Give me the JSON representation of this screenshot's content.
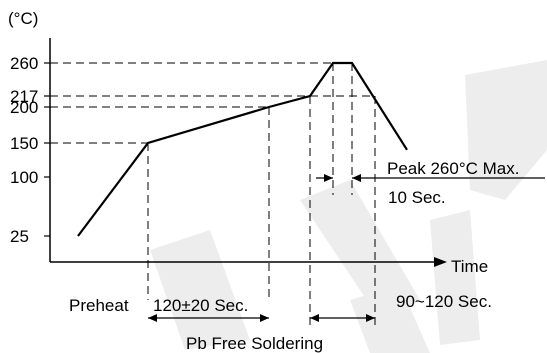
{
  "chart_data": {
    "type": "line",
    "y_unit": "(°C)",
    "x_axis_label": "Time",
    "y_ticks": [
      260,
      217,
      200,
      150,
      100,
      25
    ],
    "y_tick_labels": [
      "260",
      "217",
      "200",
      "150",
      "100",
      "25"
    ],
    "profile": {
      "name": "",
      "temps": [
        25,
        150,
        200,
        217,
        260,
        260,
        140
      ]
    },
    "guide_levels": [
      260,
      217,
      200,
      150
    ],
    "annotations": {
      "preheat": "Preheat",
      "preheat_time": "120±20 Sec.",
      "peak": "Peak 260°C Max.",
      "peak_time": "10 Sec.",
      "above_217_time": "90~120 Sec.",
      "process": "Pb Free Soldering"
    },
    "grid": false,
    "legend": "none"
  },
  "colors": {
    "ink": "#000000",
    "watermark": "#ededed"
  }
}
